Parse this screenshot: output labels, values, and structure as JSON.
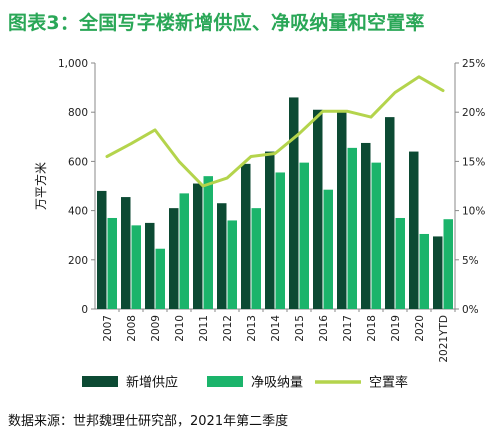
{
  "header": {
    "title": "图表3：全国写字楼新增供应、净吸纳量和空置率"
  },
  "footer": {
    "source": "数据来源：世邦魏理仕研究部，2021年第二季度"
  },
  "colors": {
    "supply": "#0c4a33",
    "absorption": "#1bb46b",
    "vacancy": "#b4d44c",
    "title": "#2aa757"
  },
  "chart_data": {
    "type": "bar",
    "title": "图表3：全国写字楼新增供应、净吸纳量和空置率",
    "ylabel": "万平方米",
    "categories": [
      "2007",
      "2008",
      "2009",
      "2010",
      "2011",
      "2012",
      "2013",
      "2014",
      "2015",
      "2016",
      "2017",
      "2018",
      "2019",
      "2020",
      "2021YTD"
    ],
    "ylim": [
      0,
      1000
    ],
    "y_ticks": [
      "0",
      "200",
      "400",
      "600",
      "800",
      "1,000"
    ],
    "y2lim": [
      0,
      25
    ],
    "y2_ticks": [
      "0%",
      "5%",
      "10%",
      "15%",
      "20%",
      "25%"
    ],
    "legend_position": "bottom",
    "series": [
      {
        "name": "新增供应",
        "type": "bar",
        "axis": "left",
        "values": [
          480,
          455,
          350,
          410,
          510,
          430,
          590,
          640,
          860,
          810,
          800,
          675,
          780,
          640,
          295
        ]
      },
      {
        "name": "净吸纳量",
        "type": "bar",
        "axis": "left",
        "values": [
          370,
          340,
          245,
          470,
          540,
          360,
          410,
          555,
          595,
          485,
          655,
          595,
          370,
          305,
          365
        ]
      },
      {
        "name": "空置率",
        "type": "line",
        "axis": "right",
        "values": [
          15.5,
          16.8,
          18.2,
          15.0,
          12.5,
          13.3,
          15.5,
          15.8,
          17.8,
          20.1,
          20.1,
          19.5,
          22.0,
          23.6,
          22.2
        ]
      }
    ]
  }
}
